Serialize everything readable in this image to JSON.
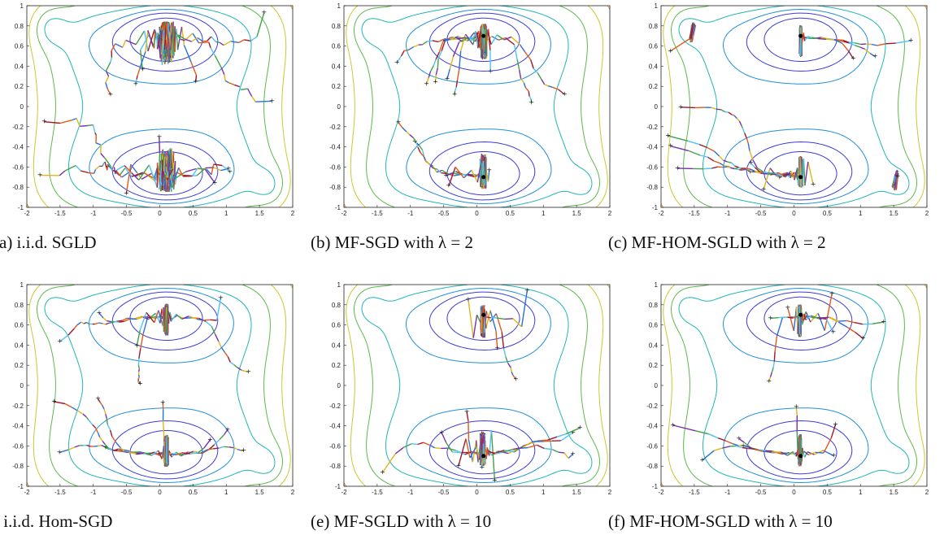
{
  "figure": {
    "panels": [
      {
        "caption": "(a) i.i.d. SGLD",
        "variant": "iid-sgld",
        "lambda": null
      },
      {
        "caption": "(b) MF-SGD with λ = 2",
        "variant": "mf-sgd",
        "lambda": 2
      },
      {
        "caption": "(c) MF-HOM-SGLD with λ = 2",
        "variant": "mf-hom-sgld",
        "lambda": 2
      },
      {
        "caption": ") i.i.d. Hom-SGD",
        "variant": "iid-hom-sgd",
        "lambda": null
      },
      {
        "caption": "(e) MF-SGLD with λ = 10",
        "variant": "mf-sgld",
        "lambda": 10
      },
      {
        "caption": "(f) MF-HOM-SGLD with λ = 10",
        "variant": "mf-hom-sgld",
        "lambda": 10
      }
    ]
  },
  "chart_data": {
    "type": "contour-with-trajectories",
    "xlim": [
      -2,
      2
    ],
    "ylim": [
      -1,
      1
    ],
    "x_ticks": [
      "-2",
      "-1.5",
      "-1",
      "-0.5",
      "0",
      "0.5",
      "1",
      "1.5",
      "2"
    ],
    "y_ticks": [
      "1",
      "0.8",
      "0.6",
      "0.4",
      "0.2",
      "0",
      "-0.2",
      "-0.4",
      "-0.6",
      "-0.8",
      "-1"
    ],
    "contour_colors": [
      "#3b3bd6",
      "#1f8fd6",
      "#1fb5b5",
      "#5cb84a",
      "#c9c930",
      "#e0a020"
    ],
    "trajectory_colors": [
      "#e05a1a",
      "#2a6fd6",
      "#e0b51a",
      "#7b2fa8",
      "#43a047",
      "#4fc3f7",
      "#a0192a"
    ],
    "minima": [
      [
        -1.7,
        0.8
      ],
      [
        0.1,
        0.7
      ],
      [
        1.7,
        -0.8
      ],
      [
        0.1,
        -0.7
      ]
    ],
    "grid": false
  }
}
